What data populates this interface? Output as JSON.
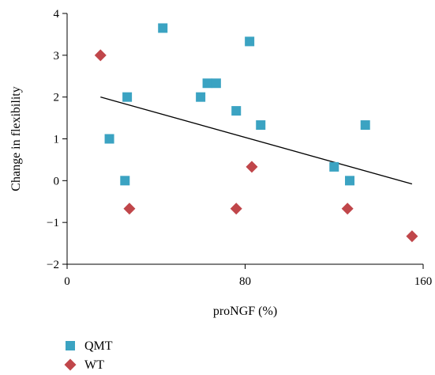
{
  "chart_data": {
    "type": "scatter",
    "title": "",
    "xlabel": "proNGF (%)",
    "ylabel": "Change in flexibility",
    "xlim": [
      0,
      160
    ],
    "ylim": [
      -2,
      4
    ],
    "x_ticks": [
      0,
      80,
      160
    ],
    "y_ticks": [
      -2,
      -1,
      0,
      1,
      2,
      3,
      4
    ],
    "y_tick_labels": [
      "−2",
      "−1",
      "0",
      "1",
      "2",
      "3",
      "4"
    ],
    "grid": false,
    "legend_position": "bottom-left",
    "series": [
      {
        "name": "QMT",
        "marker": "square",
        "color": "#3ba3c2",
        "points": [
          {
            "x": 19,
            "y": 1.0
          },
          {
            "x": 26,
            "y": 0.0
          },
          {
            "x": 27,
            "y": 2.0
          },
          {
            "x": 43,
            "y": 3.65
          },
          {
            "x": 60,
            "y": 2.0
          },
          {
            "x": 63,
            "y": 2.33
          },
          {
            "x": 67,
            "y": 2.33
          },
          {
            "x": 76,
            "y": 1.67
          },
          {
            "x": 82,
            "y": 3.33
          },
          {
            "x": 87,
            "y": 1.33
          },
          {
            "x": 120,
            "y": 0.33
          },
          {
            "x": 127,
            "y": 0.0
          },
          {
            "x": 134,
            "y": 1.33
          }
        ]
      },
      {
        "name": "WT",
        "marker": "diamond",
        "color": "#c0464a",
        "points": [
          {
            "x": 15,
            "y": 3.0
          },
          {
            "x": 28,
            "y": -0.67
          },
          {
            "x": 76,
            "y": -0.67
          },
          {
            "x": 83,
            "y": 0.33
          },
          {
            "x": 126,
            "y": -0.67
          },
          {
            "x": 155,
            "y": -1.33
          }
        ]
      }
    ],
    "trendline": {
      "color": "#000000",
      "from": {
        "x": 15,
        "y": 2.0
      },
      "to": {
        "x": 155,
        "y": -0.08
      }
    }
  }
}
